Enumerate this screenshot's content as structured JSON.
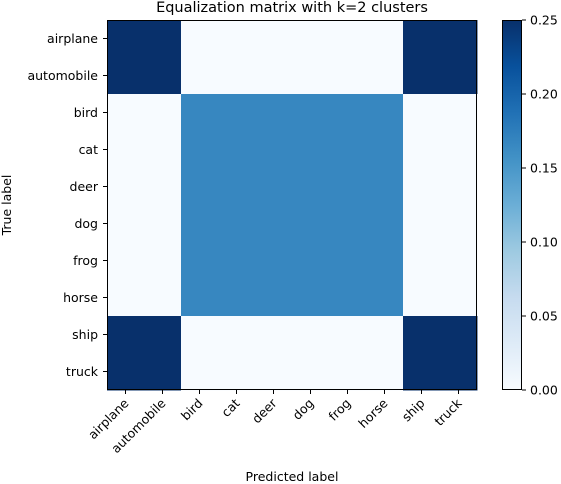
{
  "chart_data": {
    "type": "heatmap",
    "title": "Equalization matrix with k=2 clusters",
    "xlabel": "Predicted label",
    "ylabel": "True label",
    "x_categories": [
      "airplane",
      "automobile",
      "bird",
      "cat",
      "deer",
      "dog",
      "frog",
      "horse",
      "ship",
      "truck"
    ],
    "y_categories": [
      "airplane",
      "automobile",
      "bird",
      "cat",
      "deer",
      "dog",
      "frog",
      "horse",
      "ship",
      "truck"
    ],
    "values": [
      [
        0.25,
        0.25,
        0,
        0,
        0,
        0,
        0,
        0,
        0.25,
        0.25
      ],
      [
        0.25,
        0.25,
        0,
        0,
        0,
        0,
        0,
        0,
        0.25,
        0.25
      ],
      [
        0,
        0,
        0.1667,
        0.1667,
        0.1667,
        0.1667,
        0.1667,
        0.1667,
        0,
        0
      ],
      [
        0,
        0,
        0.1667,
        0.1667,
        0.1667,
        0.1667,
        0.1667,
        0.1667,
        0,
        0
      ],
      [
        0,
        0,
        0.1667,
        0.1667,
        0.1667,
        0.1667,
        0.1667,
        0.1667,
        0,
        0
      ],
      [
        0,
        0,
        0.1667,
        0.1667,
        0.1667,
        0.1667,
        0.1667,
        0.1667,
        0,
        0
      ],
      [
        0,
        0,
        0.1667,
        0.1667,
        0.1667,
        0.1667,
        0.1667,
        0.1667,
        0,
        0
      ],
      [
        0,
        0,
        0.1667,
        0.1667,
        0.1667,
        0.1667,
        0.1667,
        0.1667,
        0,
        0
      ],
      [
        0.25,
        0.25,
        0,
        0,
        0,
        0,
        0,
        0,
        0.25,
        0.25
      ],
      [
        0.25,
        0.25,
        0,
        0,
        0,
        0,
        0,
        0,
        0.25,
        0.25
      ]
    ],
    "colorbar": {
      "range": [
        0,
        0.25
      ],
      "ticks": [
        "0.00",
        "0.05",
        "0.10",
        "0.15",
        "0.20",
        "0.25"
      ],
      "colormap": "Blues"
    },
    "grid": false
  }
}
